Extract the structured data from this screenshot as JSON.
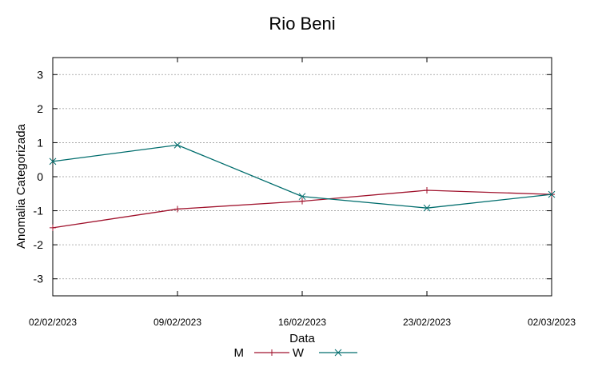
{
  "chart_data": {
    "type": "line",
    "title": "Rio Beni",
    "xlabel": "Data",
    "ylabel": "Anomalia Categorizada",
    "categories": [
      "02/02/2023",
      "09/02/2023",
      "16/02/2023",
      "23/02/2023",
      "02/03/2023"
    ],
    "yticks": [
      -3,
      -2,
      -1,
      0,
      1,
      2,
      3
    ],
    "ylim": [
      -3.5,
      3.5
    ],
    "grid": true,
    "legend_position": "bottom",
    "series": [
      {
        "name": "M",
        "values": [
          -1.5,
          -0.95,
          -0.72,
          -0.4,
          -0.52
        ],
        "color": "#a0132d",
        "marker": "plus"
      },
      {
        "name": "W",
        "values": [
          0.45,
          0.93,
          -0.58,
          -0.92,
          -0.52
        ],
        "color": "#006d6d",
        "marker": "cross"
      }
    ]
  }
}
